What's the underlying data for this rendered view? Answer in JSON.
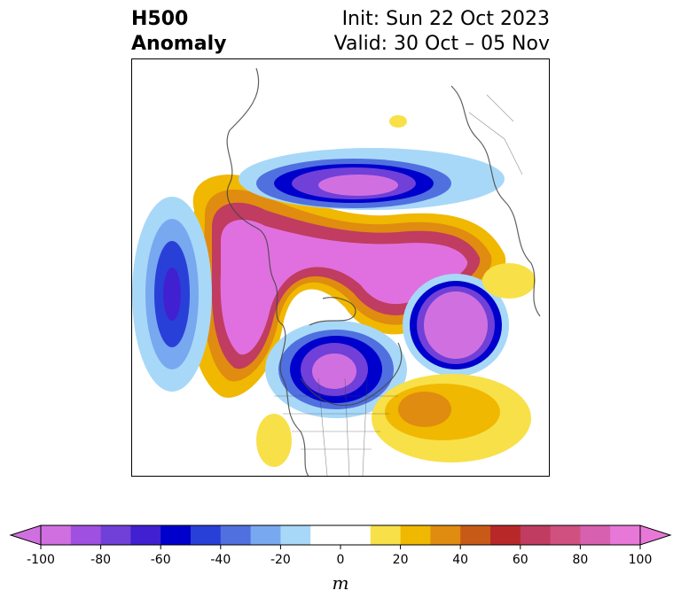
{
  "title": {
    "left_line1": "H500",
    "left_line2": "Anomaly",
    "right_line1": "Init: Sun 22 Oct 2023",
    "right_line2": "Valid: 30 Oct – 05 Nov"
  },
  "colorbar": {
    "unit": "m",
    "levels": [
      -100,
      -90,
      -80,
      -70,
      -60,
      -50,
      -40,
      -30,
      -20,
      -10,
      10,
      20,
      30,
      40,
      50,
      60,
      70,
      80,
      90,
      100
    ],
    "colors": [
      "#d070e0",
      "#a050e0",
      "#7040d8",
      "#4020d0",
      "#0000cc",
      "#2840d8",
      "#5070e0",
      "#78a8f0",
      "#a8d8f8",
      "#ffffff",
      "#f8e048",
      "#f0b800",
      "#e08c10",
      "#c85a18",
      "#b82828",
      "#c03c60",
      "#d05080",
      "#d860b0",
      "#e878d8"
    ],
    "under_color": "#d070e0",
    "over_color": "#e878d8",
    "tick_values": [
      "-100",
      "-80",
      "-60",
      "-40",
      "-20",
      "0",
      "20",
      "40",
      "60",
      "80",
      "100"
    ]
  },
  "map": {
    "anomalies": [
      {
        "name": "pacific-trough",
        "sign": "negative",
        "peak": -75
      },
      {
        "name": "hudson-bay-trough",
        "sign": "negative",
        "peak": -80
      },
      {
        "name": "eastern-us-trough",
        "sign": "negative",
        "peak": -90
      },
      {
        "name": "north-atlantic-trough",
        "sign": "negative",
        "peak": -100
      },
      {
        "name": "arctic-ridge",
        "sign": "positive",
        "peak": 100
      },
      {
        "name": "atlantic-ridge",
        "sign": "positive",
        "peak": 40
      }
    ]
  }
}
